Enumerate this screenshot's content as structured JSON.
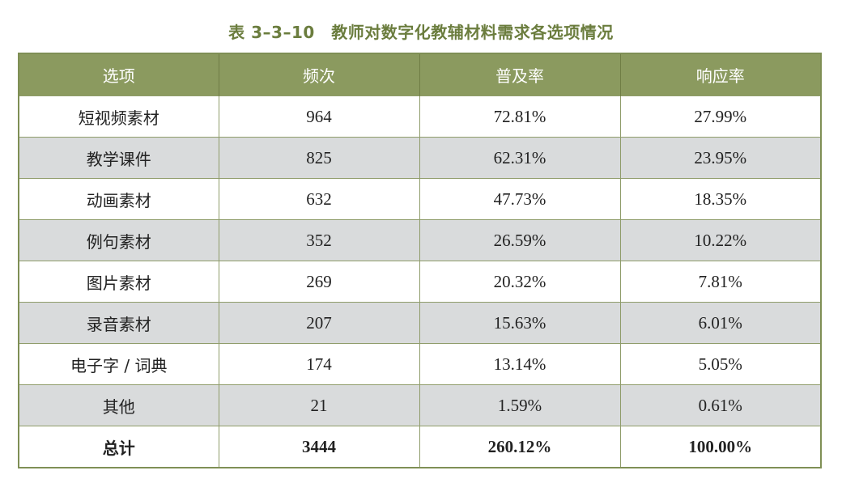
{
  "title": "表 3–3–10　教师对数字化教辅材料需求各选项情况",
  "colors": {
    "header_bg": "#8b9a5f",
    "title_color": "#6b7d3e",
    "stripe_bg": "#d9dbdc"
  },
  "table": {
    "headers": [
      "选项",
      "频次",
      "普及率",
      "响应率"
    ],
    "rows": [
      [
        "短视频素材",
        "964",
        "72.81%",
        "27.99%"
      ],
      [
        "教学课件",
        "825",
        "62.31%",
        "23.95%"
      ],
      [
        "动画素材",
        "632",
        "47.73%",
        "18.35%"
      ],
      [
        "例句素材",
        "352",
        "26.59%",
        "10.22%"
      ],
      [
        "图片素材",
        "269",
        "20.32%",
        "7.81%"
      ],
      [
        "录音素材",
        "207",
        "15.63%",
        "6.01%"
      ],
      [
        "电子字 / 词典",
        "174",
        "13.14%",
        "5.05%"
      ],
      [
        "其他",
        "21",
        "1.59%",
        "0.61%"
      ]
    ],
    "total": [
      "总计",
      "3444",
      "260.12%",
      "100.00%"
    ]
  }
}
